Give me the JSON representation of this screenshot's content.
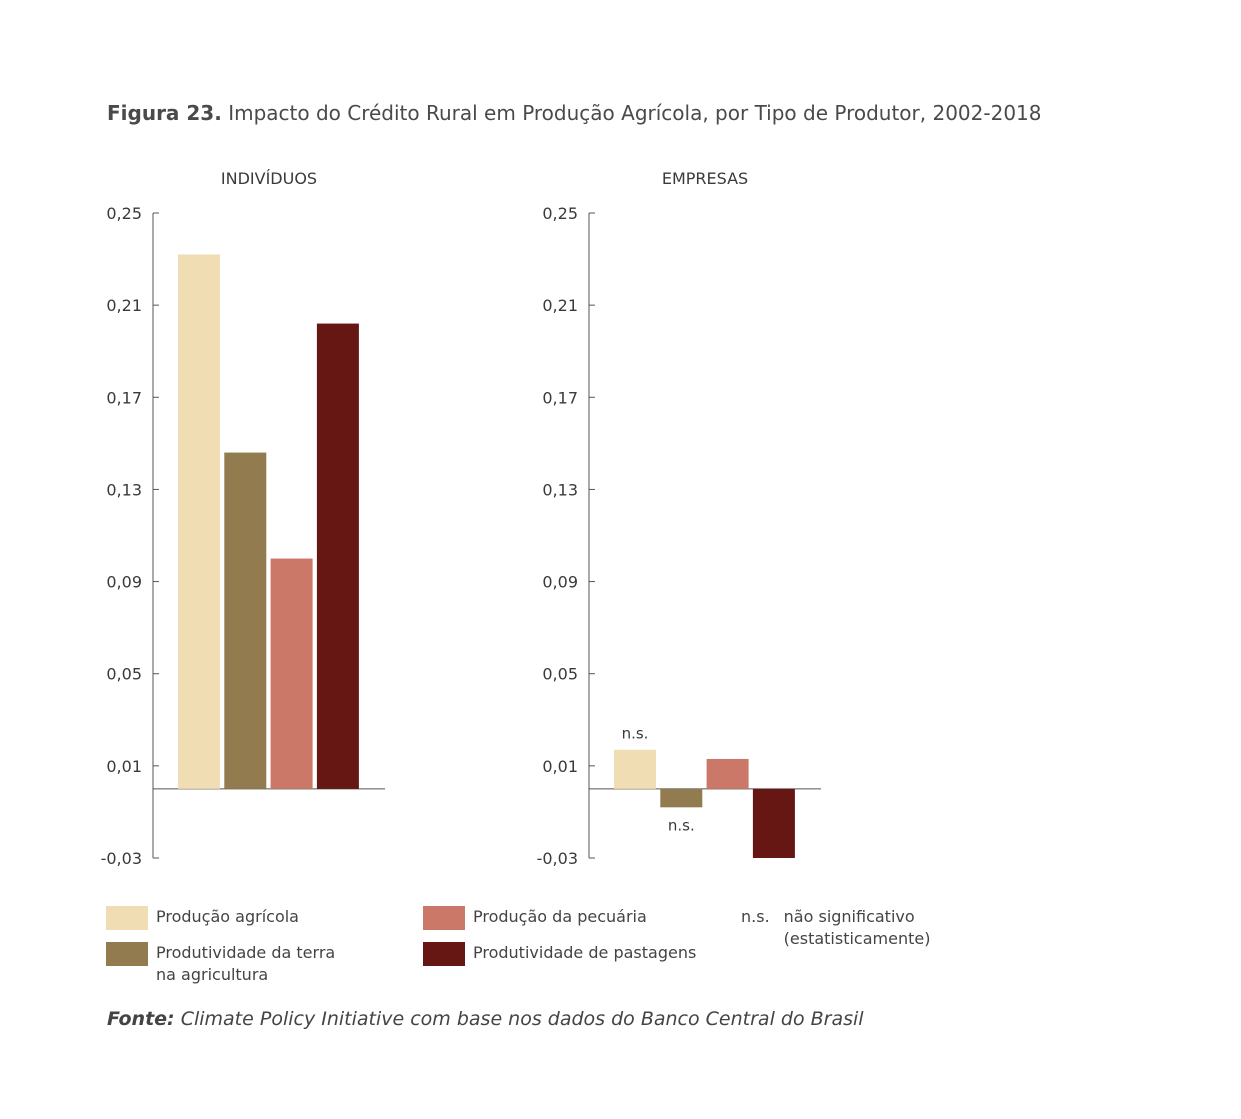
{
  "title": {
    "figure": "Figura 23.",
    "text": "Impacto do Crédito Rural em Produção Agrícola, por Tipo de Produtor, 2002-2018"
  },
  "chart_data": [
    {
      "type": "bar",
      "title": "INDIVÍDUOS",
      "ylim": [
        -0.03,
        0.25
      ],
      "yticks": [
        "0,25",
        "0,21",
        "0,17",
        "0,13",
        "0,09",
        "0,05",
        "0,01",
        "-0,03"
      ],
      "ytick_values": [
        0.25,
        0.21,
        0.17,
        0.13,
        0.09,
        0.05,
        0.01,
        -0.03
      ],
      "grid": false,
      "series": [
        {
          "name": "Produção agrícola",
          "value": 0.232,
          "annotation": ""
        },
        {
          "name": "Produtividade da terra na agricultura",
          "value": 0.146,
          "annotation": ""
        },
        {
          "name": "Produção da pecuária",
          "value": 0.1,
          "annotation": ""
        },
        {
          "name": "Produtividade de pastagens",
          "value": 0.202,
          "annotation": ""
        }
      ]
    },
    {
      "type": "bar",
      "title": "EMPRESAS",
      "ylim": [
        -0.03,
        0.25
      ],
      "yticks": [
        "0,25",
        "0,21",
        "0,17",
        "0,13",
        "0,09",
        "0,05",
        "0,01",
        "-0,03"
      ],
      "ytick_values": [
        0.25,
        0.21,
        0.17,
        0.13,
        0.09,
        0.05,
        0.01,
        -0.03
      ],
      "grid": false,
      "series": [
        {
          "name": "Produção agrícola",
          "value": 0.017,
          "annotation": "n.s."
        },
        {
          "name": "Produtividade da terra na agricultura",
          "value": -0.008,
          "annotation": "n.s."
        },
        {
          "name": "Produção da pecuária",
          "value": 0.013,
          "annotation": ""
        },
        {
          "name": "Produtividade de pastagens",
          "value": -0.03,
          "annotation": ""
        }
      ]
    }
  ],
  "colors": {
    "Produção agrícola": "#f0ddb4",
    "Produtividade da terra na agricultura": "#927b4f",
    "Produção da pecuária": "#cc7869",
    "Produtividade de pastagens": "#661714"
  },
  "legend": {
    "items": [
      {
        "label": "Produção agrícola",
        "color": "#f0ddb4"
      },
      {
        "label": "Produtividade da terra\nna agricultura",
        "color": "#927b4f"
      },
      {
        "label": "Produção da pecuária",
        "color": "#cc7869"
      },
      {
        "label": "Produtividade de pastagens",
        "color": "#661714"
      }
    ],
    "ns_abbr": "n.s.",
    "ns_desc": "não significativo\n(estatisticamente)"
  },
  "source": {
    "label": "Fonte:",
    "text": "Climate Policy Initiative com base nos dados do Banco Central do Brasil"
  }
}
